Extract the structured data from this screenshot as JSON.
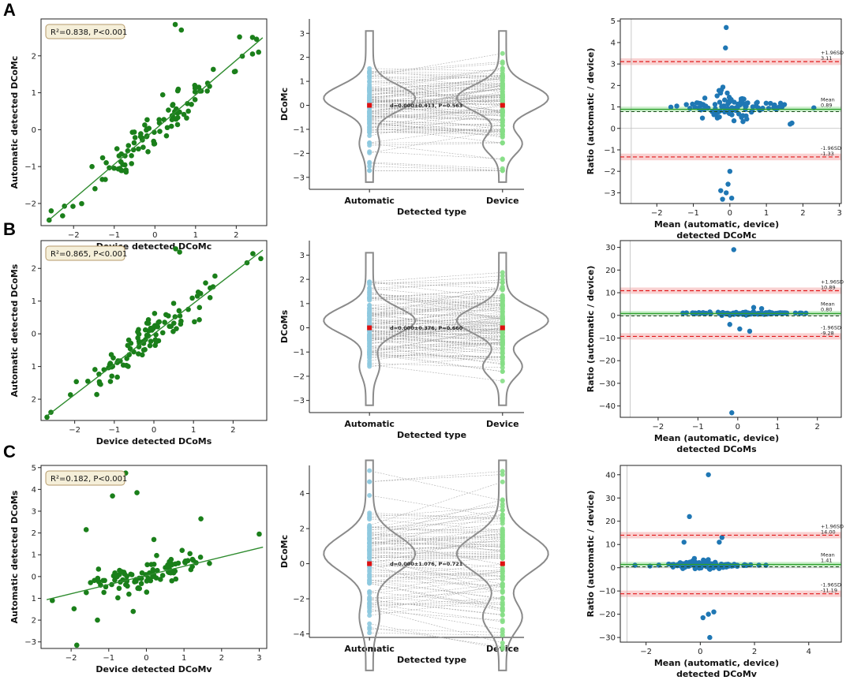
{
  "panel_letters": [
    "A",
    "B",
    "C"
  ],
  "colors": {
    "scatter_green": "#1a7f1a",
    "fit_line": "#2e8b2e",
    "auto_points": "#8ec9df",
    "device_points": "#86de86",
    "violin": "#8a8a8a",
    "mean_marker": "#e01010",
    "ba_points": "#1f77b4",
    "loa_line": "#e31a1c",
    "loa_band": "#f7c6c6",
    "mean_line": "#2ca02c",
    "mean_band": "#c7edc7",
    "legend_bg": "#f5efd9",
    "legend_border": "#b59a6a"
  },
  "chart_data": [
    {
      "id": "A-scatter",
      "type": "scatter",
      "xlabel": "Device detected DCoMc",
      "ylabel": "Automatic detected DCoMc",
      "xlim": [
        -2.8,
        2.75
      ],
      "ylim": [
        -2.6,
        3.0
      ],
      "xticks": [
        -2,
        -1,
        0,
        1,
        2
      ],
      "yticks": [
        -2,
        -1,
        0,
        1,
        2
      ],
      "ytick_labels": [
        "−2",
        "−1",
        "0",
        "1",
        "2"
      ],
      "stat_text": "R²=0.838, P<0.001",
      "fit": {
        "slope": 0.94,
        "intercept": 0.0
      },
      "n": 100,
      "noise": 0.28,
      "seed": 11,
      "points": [
        [
          -2.6,
          -2.45
        ],
        [
          -2.55,
          -2.2
        ],
        [
          2.4,
          2.5
        ],
        [
          2.5,
          2.45
        ],
        [
          2.55,
          2.1
        ],
        [
          2.4,
          2.05
        ],
        [
          0.5,
          2.85
        ],
        [
          0.65,
          2.7
        ]
      ]
    },
    {
      "id": "A-violin",
      "type": "violin-paired",
      "title": "",
      "xlabel": "Detected type",
      "ylabel": "DCoMc",
      "categories": [
        "Automatic",
        "Device"
      ],
      "ylim": [
        -3.5,
        3.6
      ],
      "yticks": [
        -3,
        -2,
        -1,
        0,
        1,
        2,
        3
      ],
      "ytick_labels": [
        "−3",
        "−2",
        "−1",
        "0",
        "1",
        "2",
        "3"
      ],
      "annotation": "d=0.000±0.413, P=0.563",
      "n": 110,
      "seed": 21,
      "spread": 1.0
    },
    {
      "id": "A-bland",
      "type": "bland-altman",
      "xlabel": "Mean (automatic, device)",
      "xlabel2": "detected DCoMc",
      "ylabel": "Ratio (automatic / device)",
      "xlim": [
        -3.0,
        3.05
      ],
      "ylim": [
        -3.5,
        5.1
      ],
      "xticks": [
        -2,
        -1,
        0,
        1,
        2,
        3
      ],
      "yticks": [
        -3,
        -2,
        -1,
        0,
        1,
        2,
        3,
        4,
        5
      ],
      "xtick_labels": [
        "−2",
        "−1",
        "0",
        "1",
        "2",
        "3"
      ],
      "ytick_labels": [
        "−3",
        "−2",
        "−1",
        "0",
        "1",
        "2",
        "3",
        "4",
        "5"
      ],
      "mean": 0.89,
      "upper": 3.11,
      "lower": -1.33,
      "upper_label": "+1.96SD",
      "upper_value": "3.11",
      "mean_label": "Mean",
      "mean_value": "0.89",
      "lower_label": "-1.96SD",
      "lower_value": "-1.33",
      "vline_x": -2.7,
      "n": 110,
      "seed": 31,
      "scale": 1.0,
      "outliers": [
        [
          -0.1,
          4.7
        ],
        [
          -0.12,
          3.75
        ],
        [
          0.0,
          -2.0
        ],
        [
          -0.05,
          -2.6
        ],
        [
          -0.1,
          -3.0
        ],
        [
          -0.2,
          -3.3
        ],
        [
          0.05,
          -3.25
        ],
        [
          -0.25,
          -2.9
        ],
        [
          1.7,
          0.25
        ],
        [
          1.65,
          0.2
        ]
      ]
    },
    {
      "id": "B-scatter",
      "type": "scatter",
      "xlabel": "Device detected DCoMs",
      "ylabel": "Automatic detected DCoMs",
      "xlim": [
        -2.85,
        2.85
      ],
      "ylim": [
        -2.65,
        2.85
      ],
      "xticks": [
        -2,
        -1,
        0,
        1,
        2
      ],
      "yticks": [
        -2,
        -1,
        0,
        1,
        2
      ],
      "ytick_labels": [
        "2",
        "1",
        "0",
        "1",
        "2"
      ],
      "stat_text": "R²=0.865, P<0.001",
      "fit": {
        "slope": 0.93,
        "intercept": 0.0
      },
      "n": 100,
      "noise": 0.25,
      "seed": 41,
      "points": [
        [
          -2.7,
          -2.55
        ],
        [
          -2.6,
          -2.4
        ],
        [
          2.7,
          2.3
        ],
        [
          2.5,
          2.45
        ],
        [
          0.55,
          2.6
        ],
        [
          0.65,
          2.5
        ]
      ]
    },
    {
      "id": "B-violin",
      "type": "violin-paired",
      "xlabel": "Detected type",
      "ylabel": "DCoMs",
      "categories": [
        "Automatic",
        "Device"
      ],
      "ylim": [
        -3.5,
        3.6
      ],
      "yticks": [
        -3,
        -2,
        -1,
        0,
        1,
        2,
        3
      ],
      "ytick_labels": [
        "−3",
        "−2",
        "−1",
        "0",
        "1",
        "2",
        "3"
      ],
      "annotation": "d=0.000±0.376, P=0.660",
      "n": 110,
      "seed": 51,
      "spread": 1.0
    },
    {
      "id": "B-bland",
      "type": "bland-altman",
      "xlabel": "Mean (automatic, device)",
      "xlabel2": "detected DCoMs",
      "ylabel": "Ratio (automatic / device)",
      "xlim": [
        -2.95,
        2.6
      ],
      "ylim": [
        -45,
        33
      ],
      "xticks": [
        -2,
        -1,
        0,
        1,
        2
      ],
      "yticks": [
        -40,
        -30,
        -20,
        -10,
        0,
        10,
        20,
        30
      ],
      "xtick_labels": [
        "−2",
        "−1",
        "0",
        "1",
        "2"
      ],
      "ytick_labels": [
        "−40",
        "−30",
        "−20",
        "−10",
        "0",
        "10",
        "20",
        "30"
      ],
      "mean": 0.8,
      "upper": 10.89,
      "lower": -9.28,
      "upper_label": "+1.96SD",
      "upper_value": "10.89",
      "mean_label": "Mean",
      "mean_value": "0.80",
      "lower_label": "-1.96SD",
      "lower_value": "-9.28",
      "vline_x": -2.7,
      "n": 110,
      "seed": 61,
      "scale": 1.2,
      "outliers": [
        [
          -0.1,
          29
        ],
        [
          -0.15,
          -43
        ],
        [
          0.3,
          -7
        ],
        [
          0.05,
          -6
        ],
        [
          -0.2,
          -4
        ],
        [
          0.4,
          3.5
        ],
        [
          0.6,
          3
        ]
      ]
    },
    {
      "id": "C-scatter",
      "type": "scatter",
      "xlabel": "Device detected DCoMv",
      "ylabel": "Automatic detected DCoMs",
      "xlim": [
        -2.8,
        3.2
      ],
      "ylim": [
        -3.3,
        5.1
      ],
      "xticks": [
        -2,
        -1,
        0,
        1,
        2,
        3
      ],
      "yticks": [
        -3,
        -2,
        -1,
        0,
        1,
        2,
        3,
        4,
        5
      ],
      "ytick_labels": [
        "−3",
        "2",
        "1",
        "0",
        "1",
        "2",
        "3",
        "4",
        "5"
      ],
      "stat_text": "R²=0.182, P<0.001",
      "fit": {
        "slope": 0.42,
        "intercept": 0.05
      },
      "n": 95,
      "noise": 0.35,
      "seed": 71,
      "points": [
        [
          -1.85,
          -3.15
        ],
        [
          -1.3,
          -2.0
        ],
        [
          -1.6,
          2.15
        ],
        [
          -0.9,
          3.7
        ],
        [
          -0.55,
          4.75
        ],
        [
          -0.25,
          3.85
        ],
        [
          0.2,
          1.7
        ],
        [
          0.95,
          1.2
        ],
        [
          1.45,
          2.65
        ],
        [
          3.0,
          1.95
        ],
        [
          -2.5,
          -1.1
        ],
        [
          -0.35,
          -1.6
        ]
      ]
    },
    {
      "id": "C-violin",
      "type": "violin-paired",
      "xlabel": "Detected type",
      "ylabel": "DCoMc",
      "categories": [
        "Automatic",
        "Device"
      ],
      "ylim": [
        -4.2,
        5.6
      ],
      "yticks": [
        -4,
        -2,
        0,
        2,
        4
      ],
      "ytick_labels": [
        "−4",
        "−2",
        "0",
        "2",
        "4"
      ],
      "annotation": "d=0.000±1.076, P=0.721",
      "n": 95,
      "seed": 81,
      "spread": 1.9
    },
    {
      "id": "C-bland",
      "type": "bland-altman",
      "xlabel": "Mean (automatic, device)",
      "xlabel2": "detected DCoMv",
      "ylabel": "Ratio (automatic / device)",
      "xlim": [
        -2.95,
        5.2
      ],
      "ylim": [
        -32,
        44
      ],
      "xticks": [
        -2,
        0,
        2,
        4
      ],
      "yticks": [
        -30,
        -20,
        -10,
        0,
        10,
        20,
        30,
        40
      ],
      "xtick_labels": [
        "−2",
        "0",
        "2",
        "4"
      ],
      "ytick_labels": [
        "−30",
        "−20",
        "−10",
        "0",
        "10",
        "20",
        "30",
        "40"
      ],
      "mean": 1.41,
      "upper": 14.0,
      "lower": -11.19,
      "upper_label": "+1.96SD",
      "upper_value": "14.00",
      "mean_label": "Mean",
      "mean_value": "1.41",
      "lower_label": "-1.96SD",
      "lower_value": "-11.19",
      "vline_x": -2.7,
      "n": 100,
      "seed": 91,
      "scale": 3.0,
      "outliers": [
        [
          0.3,
          40
        ],
        [
          -0.4,
          22
        ],
        [
          0.3,
          -20
        ],
        [
          0.5,
          -19
        ],
        [
          0.1,
          -21.5
        ],
        [
          0.35,
          -30
        ],
        [
          0.8,
          13
        ],
        [
          0.7,
          11
        ],
        [
          -0.6,
          11
        ]
      ]
    }
  ]
}
